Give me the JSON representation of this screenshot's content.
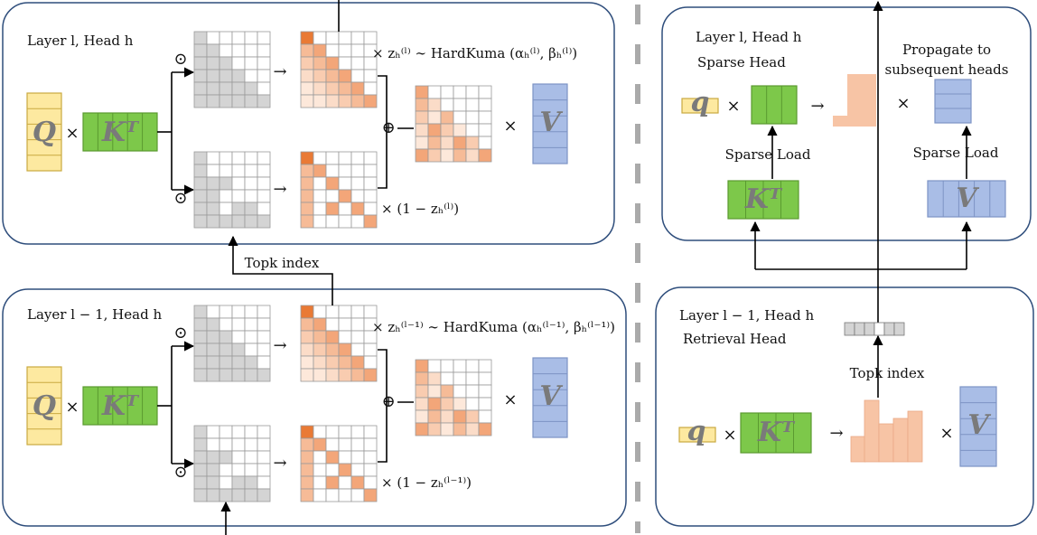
{
  "symbols": {
    "times": "×",
    "arrow": "→",
    "odot": "⊙",
    "oplus": "⊕"
  },
  "left_top": {
    "title": "Layer l, Head h",
    "q": "Q",
    "k": "Kᵀ",
    "v": "V",
    "gate": "× zₕ⁽ˡ⁾ ∼ HardKuma (αₕ⁽ˡ⁾, βₕ⁽ˡ⁾)",
    "gate_complement": "× (1 − zₕ⁽ˡ⁾)"
  },
  "topk_link": "Topk index",
  "left_bottom": {
    "title": "Layer l − 1, Head h",
    "q": "Q",
    "k": "Kᵀ",
    "v": "V",
    "gate": "× zₕ⁽ˡ⁻¹⁾ ∼ HardKuma (αₕ⁽ˡ⁻¹⁾, βₕ⁽ˡ⁻¹⁾)",
    "gate_complement": "× (1 − zₕ⁽ˡ⁻¹⁾)"
  },
  "right_top": {
    "title": "Layer l, Head h",
    "subtitle": "Sparse Head",
    "propagate": [
      "Propagate to",
      "subsequent heads"
    ],
    "q": "q",
    "k": "Kᵀ",
    "v": "V",
    "load_k": "Sparse Load",
    "load_v": "Sparse Load"
  },
  "right_bottom": {
    "title": "Layer l − 1, Head h",
    "subtitle": "Retrieval Head",
    "topk": "Topk index",
    "q": "q",
    "k": "Kᵀ",
    "v": "V"
  }
}
